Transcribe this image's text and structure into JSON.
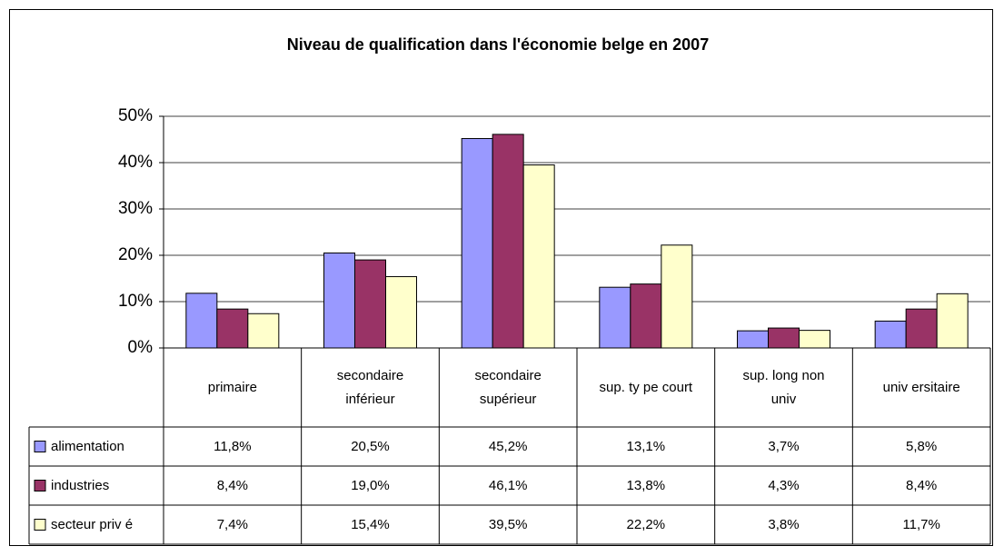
{
  "chart_data": {
    "type": "bar",
    "title": "Niveau de qualification dans l'économie belge en 2007",
    "categories": [
      "primaire",
      "secondaire\ninférieur",
      "secondaire\nsupérieur",
      "sup. ty pe court",
      "sup. long non\nuniv",
      "univ ersitaire"
    ],
    "series": [
      {
        "name": "alimentation",
        "color": "#9999ff",
        "values": [
          11.8,
          20.5,
          45.2,
          13.1,
          3.7,
          5.8
        ],
        "value_labels": [
          "11,8%",
          "20,5%",
          "45,2%",
          "13,1%",
          "3,7%",
          "5,8%"
        ]
      },
      {
        "name": "industries",
        "color": "#993366",
        "values": [
          8.4,
          19.0,
          46.1,
          13.8,
          4.3,
          8.4
        ],
        "value_labels": [
          "8,4%",
          "19,0%",
          "46,1%",
          "13,8%",
          "4,3%",
          "8,4%"
        ]
      },
      {
        "name": "secteur priv é",
        "color": "#ffffcc",
        "values": [
          7.4,
          15.4,
          39.5,
          22.2,
          3.8,
          11.7
        ],
        "value_labels": [
          "7,4%",
          "15,4%",
          "39,5%",
          "22,2%",
          "3,8%",
          "11,7%"
        ]
      }
    ],
    "ylim": [
      0,
      50
    ],
    "yticks": [
      {
        "value": 0,
        "label": "0%"
      },
      {
        "value": 10,
        "label": "10%"
      },
      {
        "value": 20,
        "label": "20%"
      },
      {
        "value": 30,
        "label": "30%"
      },
      {
        "value": 40,
        "label": "40%"
      },
      {
        "value": 50,
        "label": "50%"
      }
    ],
    "grid": true
  }
}
